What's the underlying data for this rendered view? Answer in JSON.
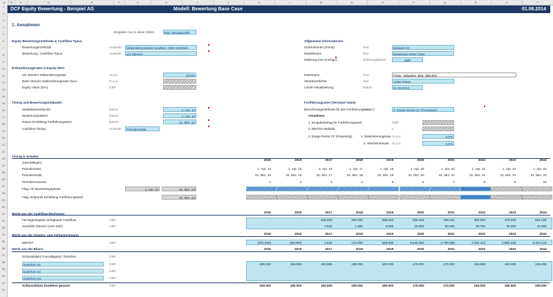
{
  "columns": [
    "A",
    "B",
    "C",
    "D",
    "E",
    "F",
    "G",
    "H",
    "I",
    "J",
    "K",
    "L",
    "M",
    "N",
    "O",
    "P",
    "Q",
    "R",
    "S",
    "T"
  ],
  "rows": [
    "1",
    "2",
    "3",
    "4",
    "5",
    "6",
    "7",
    "8",
    "9",
    "10",
    "11",
    "12",
    "13",
    "14",
    "15",
    "16",
    "17",
    "18",
    "19",
    "20",
    "21",
    "22",
    "23",
    "24",
    "25",
    "26",
    "27",
    "28",
    "29",
    "30",
    "31",
    "32",
    "33",
    "34",
    "35",
    "36",
    "37",
    "38",
    "39",
    "40",
    "41",
    "42"
  ],
  "header": {
    "title": "DCF Equity Bewertung -  Beispiel AG",
    "model": "Modell: Bewertung Base Case",
    "date": "01.08.2014"
  },
  "section1": {
    "title": "1. Annahmen",
    "hint": "Eingaben nur in diese Zeilen",
    "hint_cell": "Bsp. Eingabezelle"
  },
  "methods": {
    "title": "Equity Bewertungsmethode  & Cashflow Typus",
    "r1": {
      "label": "Bewertungsmethode",
      "unit": "Auswahl",
      "value": "Diskontierungssatz angeben, Wert ermitteln"
    },
    "r2": {
      "label": "Bewertung  / Cashflow Typus",
      "unit": "Auswahl",
      "value": "vor Steuern"
    }
  },
  "rates": {
    "title": "Diskontierungsraten & Equity Wert",
    "r1": {
      "label": "Vor Steuern Diskontierungsrate",
      "unit": "% p.a.",
      "value": "20,0%"
    },
    "r2": {
      "label": "Nach Steuern Diskontierungsrate  (N/A)",
      "unit": "% p.a."
    },
    "r3": {
      "label": "Equity Value (N/A)",
      "unit": "GBP"
    }
  },
  "timing": {
    "title": "Timing und Bewertungszeitpunkt",
    "r1": {
      "label": "Modellstartzeitpunkt",
      "unit": "Datum",
      "value": "1. Apr. 14"
    },
    "r2": {
      "label": "Bewertungsdatum",
      "unit": "Datum",
      "value": "1. Apr. 14"
    },
    "r3": {
      "label": "Datum Ermittlung Fortführungswert",
      "unit": "Datum",
      "value": "31. Mrz. 22"
    },
    "r4": {
      "label": "Cashflow Timing",
      "unit": "Auswahl",
      "value": "Periodenmitte"
    }
  },
  "info": {
    "title": "Allgemeine Informationen",
    "r1": {
      "label": "Unternehmen (Firma)",
      "unit": "Text",
      "value": "Beispiel AG"
    },
    "r2": {
      "label": "Modellname",
      "unit": "Text",
      "value": "Bewertung Base Case"
    },
    "r3": {
      "label": "Währung (nur Anzeige)",
      "unit": "Währungskürzel",
      "value": "GBP"
    },
    "r4": {
      "label": "Dateiname",
      "unit": "Text",
      "value": "Fintor_Valuation_Box_003.xlsx"
    },
    "r5": {
      "label": "Verantwortlicher",
      "unit": "Text",
      "value": "Adam Riese"
    },
    "r6": {
      "label": "Letzte Aktualisierung",
      "unit": "Datum",
      "value": "01.08.2014"
    }
  },
  "terminal": {
    "title": "Fortführungswert (Terminal Value)",
    "r1": {
      "label": "Berechnungsmethode für den Fortführungswert",
      "unit": "Auswahl",
      "value": "3. Ewige Rente CF (Perpetuity)"
    },
    "sub": "Annahmen",
    "a1": {
      "label": "1. Eingabebetrag für Fortführungswert",
      "unit": "GBP"
    },
    "a2": {
      "label": "2. EBITDA Multiple",
      "unit": "x"
    },
    "a3": {
      "label": "3. Ewige Rente CF (Perpetuity)",
      "sub": "1. Diskontierungsrate",
      "unit": "% p.a.",
      "value": "0,0%"
    },
    "a4": {
      "sub": "2. Wachstumsrate",
      "unit": "% p.a.",
      "value": "2,5%"
    }
  },
  "schalter": {
    "title": "Timing & Schalter",
    "labels": [
      "Geschäftsjahr",
      "Periodenstart",
      "Periodenende",
      "Periodennummer",
      "Flag: CF Bewertungsphase",
      "Flag: Zeitpunkt Ermittlung Fortführungswert"
    ],
    "flag_start": "1. Apr. 14",
    "flag_end": "31. Mrz. 22",
    "flag_end2": "31. Mrz. 22",
    "years": [
      "2015",
      "2016",
      "2017",
      "2018",
      "2019",
      "2020",
      "2021",
      "2022",
      "2023",
      "2024"
    ],
    "starts": [
      "1. Apr. 14",
      "1. Apr. 15",
      "1. Apr. 16",
      "1. Apr. 17",
      "1. Apr. 18",
      "1. Apr. 19",
      "1. Apr. 20",
      "1. Apr. 21",
      "1. Apr. 22",
      "1. Apr. 23"
    ],
    "ends": [
      "31. Mrz. 15",
      "31. Mrz. 16",
      "31. Mrz. 17",
      "31. Mrz. 18",
      "31. Mrz. 19",
      "31. Mrz. 20",
      "31. Mrz. 21",
      "31. Mrz. 22",
      "31. Mrz. 23",
      "31. Mrz. 24"
    ],
    "nums": [
      "1",
      "2",
      "3",
      "4",
      "5",
      "6",
      "7",
      "8",
      "9",
      "10"
    ]
  },
  "cashflow": {
    "title": "Werte aus der Cashflow-Rechnung",
    "r1": {
      "label": "Für Eigenkapital verfügbarer Cashflow",
      "unit": "GBP",
      "values": [
        "-",
        "-",
        "225.000",
        "360.000",
        "288.633",
        "338.225",
        "450.211",
        "480.663",
        "470.225",
        "501.222"
      ]
    },
    "r2": {
      "label": "Gezahlte Steuern (vom EoE)",
      "unit": "GBP",
      "values": [
        "-",
        "-",
        "2.544",
        "1.500",
        "6.000",
        "19.500",
        "60.000",
        "39.750",
        "35.250",
        "42.000"
      ]
    }
  },
  "guv": {
    "title": "Werte aus der Gewinn- und Verlustrechnung",
    "r1": {
      "label": "EBITDA",
      "unit": "GBP",
      "values": [
        "(204.000)",
        "(66.000)",
        "2.544",
        "144.000",
        "546.000",
        "6.540.000",
        "2.700.369",
        "4.532.114",
        "4.880.225",
        "5.444.119"
      ]
    }
  },
  "bilanz": {
    "title": "Werte aus der Bilanz",
    "r1": {
      "label": "Schlussbilanz Fremdkapital / Darlehen",
      "unit": "GBP"
    },
    "r2": {
      "label": "Darlehen 01",
      "unit": "GBP",
      "values": [
        "200.000",
        "195.000",
        "190.000",
        "185.000",
        "180.000",
        "175.000",
        "170.000",
        "165.000",
        "160.000",
        "155.000"
      ]
    },
    "r3": {
      "label": "Darlehen 02",
      "unit": "GBP"
    },
    "r4": {
      "label": "Darlehen 03",
      "unit": "GBP"
    },
    "total": {
      "label": "Schlussbilanz Darlehen gesamt",
      "unit": "GBP",
      "values": [
        "200.000",
        "195.000",
        "190.000",
        "185.000",
        "180.000",
        "175.000",
        "170.000",
        "165.000",
        "160.000",
        "155.000"
      ]
    }
  }
}
